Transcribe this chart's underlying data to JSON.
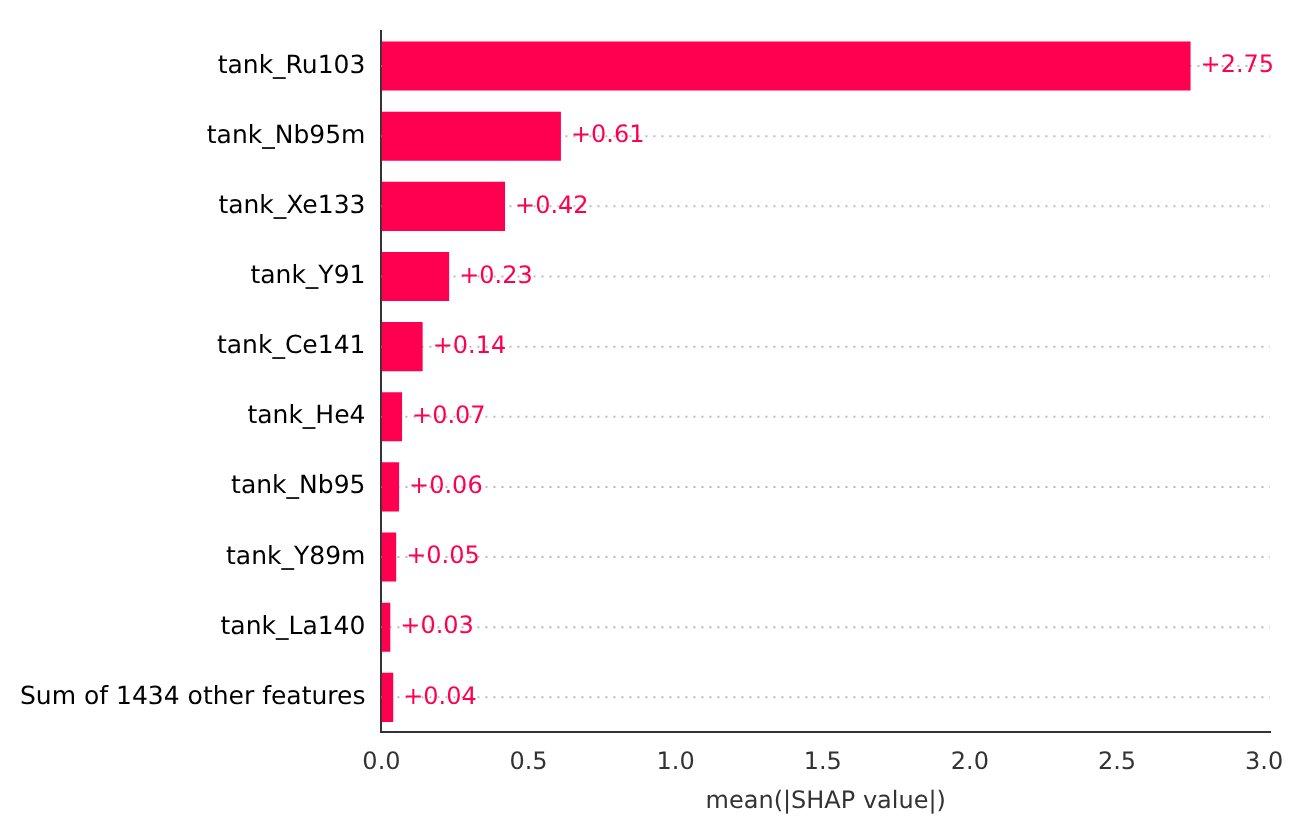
{
  "chart_data": {
    "type": "bar",
    "orientation": "horizontal",
    "xlabel": "mean(|SHAP value|)",
    "categories": [
      "tank_Ru103",
      "tank_Nb95m",
      "tank_Xe133",
      "tank_Y91",
      "tank_Ce141",
      "tank_He4",
      "tank_Nb95",
      "tank_Y89m",
      "tank_La140",
      "Sum of 1434 other features"
    ],
    "values": [
      2.75,
      0.61,
      0.42,
      0.23,
      0.14,
      0.07,
      0.06,
      0.05,
      0.03,
      0.04
    ],
    "value_labels": [
      "+2.75",
      "+0.61",
      "+0.42",
      "+0.23",
      "+0.14",
      "+0.07",
      "+0.06",
      "+0.05",
      "+0.03",
      "+0.04"
    ],
    "color": "#ff0051",
    "xlim": [
      0,
      3.02
    ],
    "xticks": [
      {
        "value": 0,
        "label": "0.0"
      },
      {
        "value": 0.5,
        "label": "0.5"
      },
      {
        "value": 1,
        "label": "1.0"
      },
      {
        "value": 1.5,
        "label": "1.5"
      },
      {
        "value": 2,
        "label": "2.0"
      },
      {
        "value": 2.5,
        "label": "2.5"
      },
      {
        "value": 3,
        "label": "3.0"
      }
    ],
    "grid": "y",
    "legend": false
  }
}
